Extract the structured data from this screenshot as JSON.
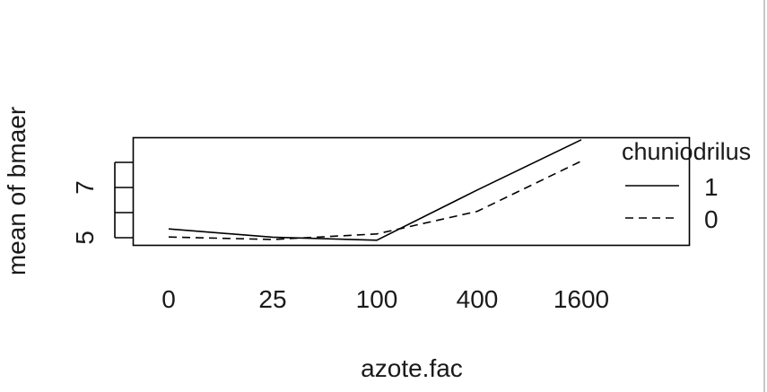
{
  "chart_data": {
    "type": "line",
    "xlabel": "azote.fac",
    "ylabel": "mean of  bmaer",
    "categories": [
      "0",
      "25",
      "100",
      "400",
      "1600"
    ],
    "ylim": [
      4.9,
      8.95
    ],
    "y_ticks": [
      5,
      6,
      7,
      8
    ],
    "y_tick_labels": [
      "5",
      "",
      "7",
      ""
    ],
    "grid": false,
    "legend": {
      "title": "chuniodrilus",
      "placement": "right"
    },
    "series": [
      {
        "name": "1",
        "line_style": "solid",
        "values": [
          5.35,
          5.02,
          4.9,
          6.9,
          8.9
        ]
      },
      {
        "name": "0",
        "line_style": "dashed",
        "values": [
          5.03,
          4.93,
          5.15,
          6.05,
          8.05
        ]
      }
    ]
  }
}
